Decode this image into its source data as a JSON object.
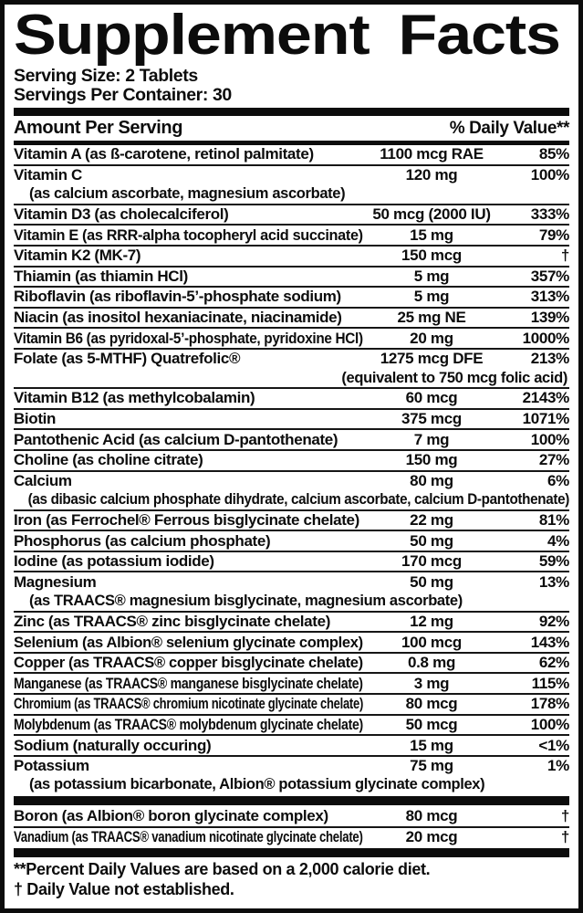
{
  "label": {
    "title": "Supplement Facts",
    "serving_size": "Serving Size: 2 Tablets",
    "servings_per_container": "Servings Per Container: 30",
    "columns": {
      "amount_header": "Amount Per Serving",
      "dv_header": "% Daily Value**"
    },
    "rows": [
      {
        "label": "Vitamin A (as ß-carotene, retinol palmitate)",
        "amount": "1100 mcg RAE",
        "dv": "85%"
      },
      {
        "label": "Vitamin C",
        "amount": "120 mg",
        "dv": "100%",
        "sub": "(as calcium ascorbate, magnesium ascorbate)",
        "sub_align": "left"
      },
      {
        "label": "Vitamin D3 (as cholecalciferol)",
        "amount": "50 mcg (2000 IU)",
        "dv": "333%"
      },
      {
        "label": "Vitamin E (as RRR-alpha tocopheryl acid succinate)",
        "amount": "15 mg",
        "dv": "79%"
      },
      {
        "label": "Vitamin K2 (MK-7)",
        "amount": "150 mcg",
        "dv": "†"
      },
      {
        "label": "Thiamin (as thiamin HCl)",
        "amount": "5 mg",
        "dv": "357%"
      },
      {
        "label": "Riboflavin (as riboflavin-5’-phosphate sodium)",
        "amount": "5 mg",
        "dv": "313%"
      },
      {
        "label": "Niacin (as inositol hexaniacinate, niacinamide)",
        "amount": "25 mg NE",
        "dv": "139%"
      },
      {
        "label": "Vitamin B6 (as pyridoxal-5’-phosphate, pyridoxine HCl)",
        "amount": "20 mg",
        "dv": "1000%"
      },
      {
        "label": "Folate (as 5-MTHF) Quatrefolic®",
        "amount": "1275 mcg DFE",
        "dv": "213%",
        "sub": "(equivalent to 750 mcg folic acid)",
        "sub_align": "right"
      },
      {
        "label": "Vitamin B12 (as methylcobalamin)",
        "amount": "60 mcg",
        "dv": "2143%"
      },
      {
        "label": "Biotin",
        "amount": "375 mcg",
        "dv": "1071%"
      },
      {
        "label": "Pantothenic Acid (as calcium D-pantothenate)",
        "amount": "7 mg",
        "dv": "100%"
      },
      {
        "label": "Choline (as choline citrate)",
        "amount": "150 mg",
        "dv": "27%"
      },
      {
        "label": "Calcium",
        "amount": "80 mg",
        "dv": "6%",
        "sub": "(as dibasic calcium phosphate dihydrate, calcium ascorbate, calcium D-pantothenate)",
        "sub_align": "left"
      },
      {
        "label": "Iron (as Ferrochel® Ferrous bisglycinate chelate)",
        "amount": "22 mg",
        "dv": "81%"
      },
      {
        "label": "Phosphorus (as calcium phosphate)",
        "amount": "50 mg",
        "dv": "4%"
      },
      {
        "label": "Iodine (as potassium iodide)",
        "amount": "170 mcg",
        "dv": "59%"
      },
      {
        "label": "Magnesium",
        "amount": "50 mg",
        "dv": "13%",
        "sub": "(as TRAACS® magnesium bisglycinate, magnesium ascorbate)",
        "sub_align": "left"
      },
      {
        "label": "Zinc (as TRAACS® zinc bisglycinate chelate)",
        "amount": "12 mg",
        "dv": "92%"
      },
      {
        "label": "Selenium (as Albion® selenium glycinate complex)",
        "amount": "100 mcg",
        "dv": "143%"
      },
      {
        "label": "Copper (as TRAACS® copper bisglycinate chelate)",
        "amount": "0.8 mg",
        "dv": "62%"
      },
      {
        "label": "Manganese (as TRAACS® manganese bisglycinate chelate)",
        "amount": "3 mg",
        "dv": "115%"
      },
      {
        "label": "Chromium (as TRAACS® chromium nicotinate glycinate chelate)",
        "amount": "80 mcg",
        "dv": "178%"
      },
      {
        "label": "Molybdenum (as TRAACS® molybdenum glycinate chelate)",
        "amount": "50 mcg",
        "dv": "100%"
      },
      {
        "label": "Sodium (naturally occuring)",
        "amount": "15 mg",
        "dv": "<1%"
      },
      {
        "label": "Potassium",
        "amount": "75 mg",
        "dv": "1%",
        "sub": "(as potassium bicarbonate, Albion® potassium glycinate complex)",
        "sub_align": "left"
      }
    ],
    "extra_rows": [
      {
        "label": "Boron (as Albion® boron glycinate complex)",
        "amount": "80 mcg",
        "dv": "†"
      },
      {
        "label": "Vanadium (as TRAACS® vanadium nicotinate glycinate chelate)",
        "amount": "20 mcg",
        "dv": "†"
      }
    ],
    "footnotes": [
      "**Percent Daily Values are based on a 2,000 calorie diet.",
      "† Daily Value not established."
    ]
  },
  "colors": {
    "ink": "#0c0c0c",
    "paper": "#ffffff"
  }
}
